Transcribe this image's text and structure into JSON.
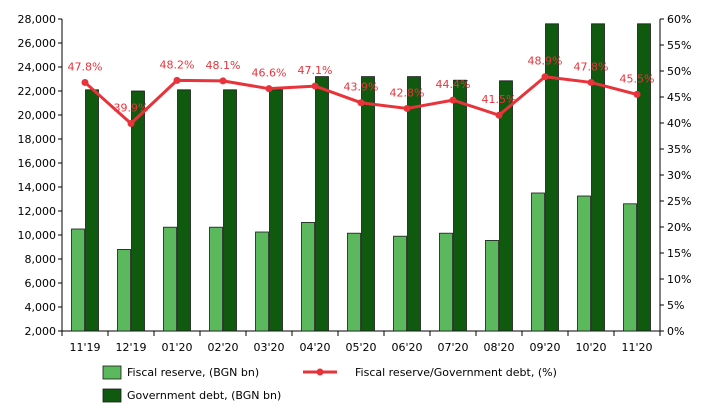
{
  "chart_data": {
    "type": "bar",
    "categories": [
      "11'19",
      "12'19",
      "01'20",
      "02'20",
      "03'20",
      "04'20",
      "05'20",
      "06'20",
      "07'20",
      "08'20",
      "09'20",
      "10'20",
      "11'20"
    ],
    "series": [
      {
        "name": "Fiscal reserve, (BGN bn)",
        "type": "bar",
        "axis": "left",
        "color": "#5cb85c",
        "values": [
          10500,
          8800,
          10650,
          10650,
          10250,
          11050,
          10150,
          9900,
          10150,
          9550,
          13500,
          13250,
          12600
        ]
      },
      {
        "name": "Government debt, (BGN bn)",
        "type": "bar",
        "axis": "left",
        "color": "#0f5a0f",
        "values": [
          22100,
          22000,
          22100,
          22100,
          22100,
          23200,
          23200,
          23200,
          22900,
          22850,
          27600,
          27600,
          27600
        ]
      },
      {
        "name": "Fiscal reserve/Government debt, (%)",
        "type": "line",
        "axis": "right",
        "color": "#e8333a",
        "values": [
          47.8,
          39.9,
          48.2,
          48.1,
          46.6,
          47.1,
          43.9,
          42.8,
          44.4,
          41.5,
          48.9,
          47.8,
          45.5
        ],
        "labels": [
          "47.8%",
          "39.9%",
          "48.2%",
          "48.1%",
          "46.6%",
          "47.1%",
          "43.9%",
          "42.8%",
          "44.4%",
          "41.5%",
          "48.9%",
          "47.8%",
          "45.5%"
        ]
      }
    ],
    "y_left": {
      "min": 2000,
      "max": 28000,
      "ticks": [
        2000,
        4000,
        6000,
        8000,
        10000,
        12000,
        14000,
        16000,
        18000,
        20000,
        22000,
        24000,
        26000,
        28000
      ],
      "tick_labels": [
        "2,000",
        "4,000",
        "6,000",
        "8,000",
        "10,000",
        "12,000",
        "14,000",
        "16,000",
        "18,000",
        "20,000",
        "22,000",
        "24,000",
        "26,000",
        "28,000"
      ]
    },
    "y_right": {
      "min": 0,
      "max": 60,
      "ticks": [
        0,
        5,
        10,
        15,
        20,
        25,
        30,
        35,
        40,
        45,
        50,
        55,
        60
      ],
      "tick_labels": [
        "0%",
        "5%",
        "10%",
        "15%",
        "20%",
        "25%",
        "30%",
        "35%",
        "40%",
        "45%",
        "50%",
        "55%",
        "60%"
      ]
    },
    "grid": false,
    "legend_position": "bottom",
    "title": "",
    "xlabel": "",
    "ylabel": ""
  }
}
